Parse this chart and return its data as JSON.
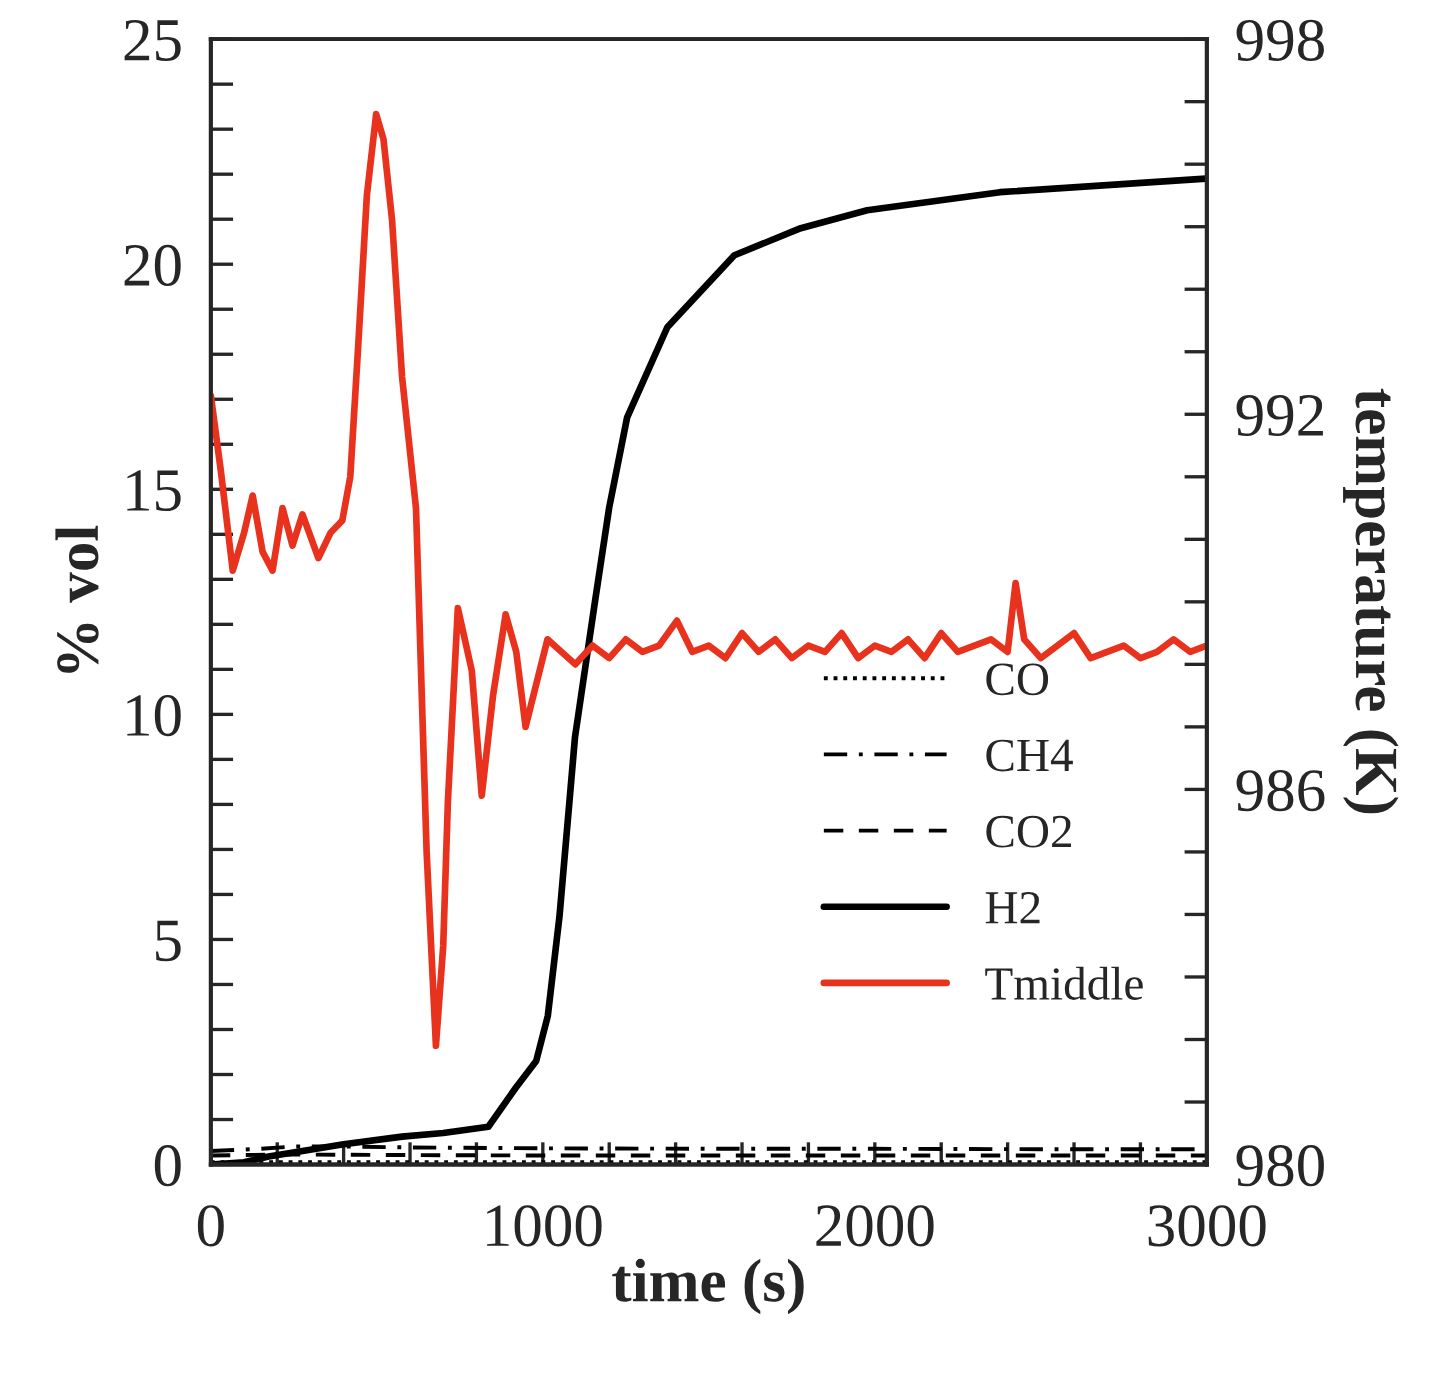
{
  "chart_data": {
    "type": "line",
    "xlabel": "time (s)",
    "ylabel": "% vol",
    "y2label": "temperature (K)",
    "xlim": [
      0,
      3000
    ],
    "xticks": [
      0,
      {
        "value": 200,
        "label": null
      },
      {
        "value": 400,
        "label": null
      },
      {
        "value": 600,
        "label": null
      },
      {
        "value": 800,
        "label": null
      },
      1000,
      {
        "value": 1200,
        "label": null
      },
      {
        "value": 1400,
        "label": null
      },
      {
        "value": 1600,
        "label": null
      },
      {
        "value": 1800,
        "label": null
      },
      2000,
      {
        "value": 2200,
        "label": null
      },
      {
        "value": 2400,
        "label": null
      },
      {
        "value": 2600,
        "label": null
      },
      {
        "value": 2800,
        "label": null
      },
      3000
    ],
    "ylim": [
      0,
      25
    ],
    "yticks": [
      0,
      {
        "value": 1,
        "label": null
      },
      {
        "value": 2,
        "label": null
      },
      {
        "value": 3,
        "label": null
      },
      {
        "value": 4,
        "label": null
      },
      5,
      {
        "value": 6,
        "label": null
      },
      {
        "value": 7,
        "label": null
      },
      {
        "value": 8,
        "label": null
      },
      {
        "value": 9,
        "label": null
      },
      10,
      {
        "value": 11,
        "label": null
      },
      {
        "value": 12,
        "label": null
      },
      {
        "value": 13,
        "label": null
      },
      {
        "value": 14,
        "label": null
      },
      15,
      {
        "value": 16,
        "label": null
      },
      {
        "value": 17,
        "label": null
      },
      {
        "value": 18,
        "label": null
      },
      {
        "value": 19,
        "label": null
      },
      20,
      {
        "value": 21,
        "label": null
      },
      {
        "value": 22,
        "label": null
      },
      {
        "value": 23,
        "label": null
      },
      {
        "value": 24,
        "label": null
      },
      25
    ],
    "y2lim": [
      980,
      998
    ],
    "y2ticks": [
      980,
      {
        "value": 981,
        "label": null
      },
      {
        "value": 982,
        "label": null
      },
      {
        "value": 983,
        "label": null
      },
      {
        "value": 984,
        "label": null
      },
      {
        "value": 985,
        "label": null
      },
      986,
      {
        "value": 987,
        "label": null
      },
      {
        "value": 988,
        "label": null
      },
      {
        "value": 989,
        "label": null
      },
      {
        "value": 990,
        "label": null
      },
      {
        "value": 991,
        "label": null
      },
      992,
      {
        "value": 993,
        "label": null
      },
      {
        "value": 994,
        "label": null
      },
      {
        "value": 995,
        "label": null
      },
      {
        "value": 996,
        "label": null
      },
      {
        "value": 997,
        "label": null
      },
      998
    ],
    "legend": "bottom right",
    "grid": false,
    "series": [
      {
        "name": "CO",
        "color": "#000000",
        "line_style": "dotted",
        "x": [
          0,
          500,
          1000,
          1500,
          2000,
          2500,
          3000
        ],
        "values": [
          0.05,
          0.05,
          0.05,
          0.05,
          0.05,
          0.05,
          0.05
        ]
      },
      {
        "name": "CH4",
        "color": "#000000",
        "line_style": "dashdot",
        "x": [
          0,
          150,
          250,
          400,
          600,
          1000,
          1500,
          2000,
          2500,
          3000
        ],
        "values": [
          0.3,
          0.35,
          0.4,
          0.4,
          0.38,
          0.36,
          0.35,
          0.35,
          0.34,
          0.34
        ]
      },
      {
        "name": "CO2",
        "color": "#000000",
        "line_style": "dashed",
        "x": [
          0,
          200,
          300,
          600,
          1000,
          1500,
          2000,
          2500,
          3000
        ],
        "values": [
          0.2,
          0.22,
          0.22,
          0.21,
          0.2,
          0.2,
          0.2,
          0.2,
          0.2
        ]
      },
      {
        "name": "H2",
        "color": "#000000",
        "line_style": "solid",
        "x": [
          0,
          100,
          174,
          276,
          400,
          576,
          700,
          836,
          918,
          980,
          1015,
          1050,
          1097,
          1157,
          1200,
          1254,
          1375,
          1577,
          1777,
          1977,
          2377,
          2997
        ],
        "values": [
          0.0,
          0.05,
          0.18,
          0.3,
          0.45,
          0.62,
          0.7,
          0.84,
          1.7,
          2.3,
          3.3,
          5.5,
          9.5,
          12.5,
          14.6,
          16.6,
          18.6,
          20.2,
          20.8,
          21.2,
          21.6,
          21.9
        ]
      },
      {
        "name": "Tmiddle",
        "color": "#e8321e",
        "line_style": "solid",
        "axis": "y2",
        "x": [
          0,
          30,
          66,
          100,
          126,
          156,
          186,
          216,
          246,
          276,
          324,
          360,
          396,
          420,
          444,
          470,
          498,
          520,
          546,
          576,
          618,
          650,
          678,
          700,
          714,
          744,
          786,
          816,
          850,
          888,
          920,
          948,
          1014,
          1098,
          1150,
          1200,
          1250,
          1300,
          1350,
          1404,
          1450,
          1500,
          1550,
          1600,
          1650,
          1700,
          1750,
          1800,
          1850,
          1900,
          1950,
          2000,
          2050,
          2100,
          2150,
          2200,
          2250,
          2300,
          2350,
          2400,
          2424,
          2450,
          2500,
          2550,
          2600,
          2650,
          2700,
          2750,
          2800,
          2850,
          2900,
          2950,
          3000
        ],
        "values": [
          992.3,
          991.1,
          989.5,
          990.1,
          990.7,
          989.8,
          989.5,
          990.5,
          989.9,
          990.4,
          989.7,
          990.1,
          990.3,
          991.0,
          993.1,
          995.5,
          996.8,
          996.4,
          995.1,
          992.6,
          990.5,
          985.0,
          981.9,
          983.5,
          985.8,
          988.9,
          987.9,
          985.9,
          987.5,
          988.8,
          988.2,
          987.0,
          988.4,
          988.0,
          988.3,
          988.1,
          988.4,
          988.2,
          988.3,
          988.7,
          988.2,
          988.3,
          988.1,
          988.5,
          988.2,
          988.4,
          988.1,
          988.3,
          988.2,
          988.5,
          988.1,
          988.3,
          988.2,
          988.4,
          988.1,
          988.5,
          988.2,
          988.3,
          988.4,
          988.2,
          989.3,
          988.4,
          988.1,
          988.3,
          988.5,
          988.1,
          988.2,
          988.3,
          988.1,
          988.2,
          988.4,
          988.2,
          988.3
        ]
      }
    ]
  }
}
